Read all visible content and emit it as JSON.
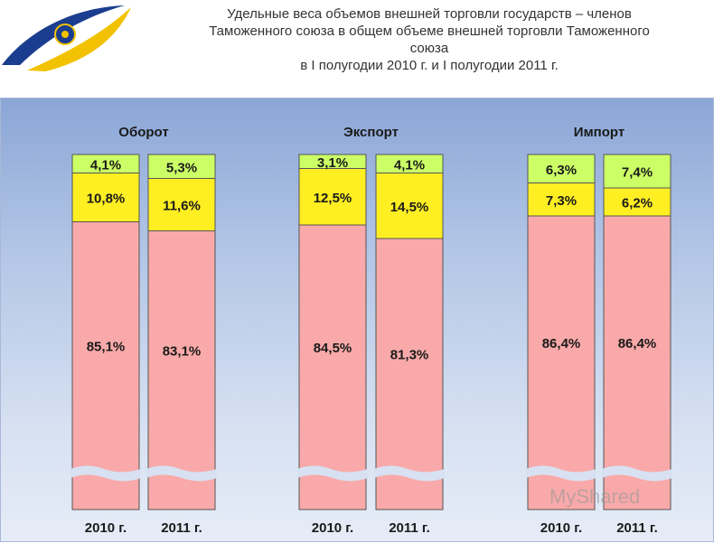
{
  "title_lines": [
    "Удельные веса объемов внешней торговли государств – членов",
    "Таможенного союза в общем объеме внешней торговли Таможенного",
    "союза",
    "в I полугодии 2010 г. и I полугодии 2011 г."
  ],
  "watermark": "MyShared",
  "colors": {
    "bottom": "#f9a9a9",
    "middle": "#ffee22",
    "top": "#ccff66",
    "border": "#555555"
  },
  "chart_data": {
    "type": "bar",
    "stacked": true,
    "axis_break": true,
    "groups": [
      {
        "name": "Оборот",
        "bars": [
          {
            "year": "2010 г.",
            "segments": [
              {
                "value": 85.1,
                "label": "85,1%"
              },
              {
                "value": 10.8,
                "label": "10,8%"
              },
              {
                "value": 4.1,
                "label": "4,1%"
              }
            ]
          },
          {
            "year": "2011 г.",
            "segments": [
              {
                "value": 83.1,
                "label": "83,1%"
              },
              {
                "value": 11.6,
                "label": "11,6%"
              },
              {
                "value": 5.3,
                "label": "5,3%"
              }
            ]
          }
        ]
      },
      {
        "name": "Экспорт",
        "bars": [
          {
            "year": "2010 г.",
            "segments": [
              {
                "value": 84.5,
                "label": "84,5%"
              },
              {
                "value": 12.5,
                "label": "12,5%"
              },
              {
                "value": 3.1,
                "label": "3,1%"
              }
            ]
          },
          {
            "year": "2011 г.",
            "segments": [
              {
                "value": 81.3,
                "label": "81,3%"
              },
              {
                "value": 14.5,
                "label": "14,5%"
              },
              {
                "value": 4.1,
                "label": "4,1%"
              }
            ]
          }
        ]
      },
      {
        "name": "Импорт",
        "bars": [
          {
            "year": "2010 г.",
            "segments": [
              {
                "value": 86.4,
                "label": "86,4%"
              },
              {
                "value": 7.3,
                "label": "7,3%"
              },
              {
                "value": 6.3,
                "label": "6,3%"
              }
            ]
          },
          {
            "year": "2011 г.",
            "segments": [
              {
                "value": 86.4,
                "label": "86,4%"
              },
              {
                "value": 6.2,
                "label": "6,2%"
              },
              {
                "value": 7.4,
                "label": "7,4%"
              }
            ]
          }
        ]
      }
    ]
  }
}
